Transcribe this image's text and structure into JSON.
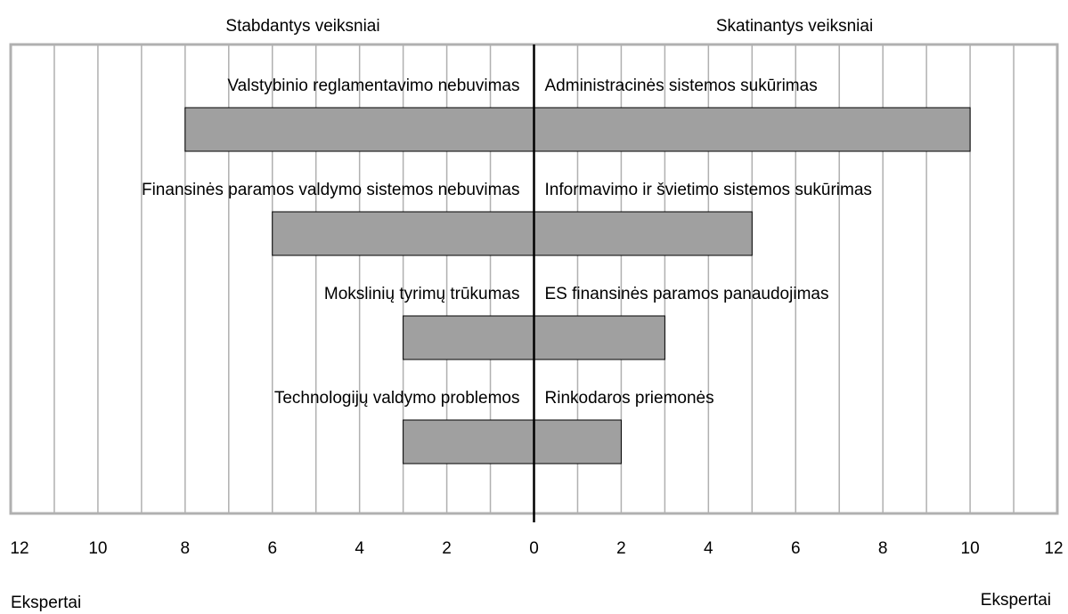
{
  "chart_data": {
    "type": "butterfly",
    "series": [
      {
        "name": "Stabdantys veiksniai",
        "side": "left",
        "color": "#a0a0a0",
        "categories": [
          "Valstybinio reglamentavimo nebuvimas",
          "Finansinės paramos valdymo sistemos nebuvimas",
          "Mokslinių tyrimų trūkumas",
          "Technologijų valdymo problemos"
        ],
        "values": [
          8,
          6,
          3,
          3
        ]
      },
      {
        "name": "Skatinantys veiksniai",
        "side": "right",
        "color": "#a0a0a0",
        "categories": [
          "Administracinės sistemos sukūrimas",
          "Informavimo ir švietimo sistemos sukūrimas",
          "ES finansinės paramos panaudojimas",
          "Rinkodaros priemonės"
        ],
        "values": [
          10,
          5,
          3,
          2
        ]
      }
    ],
    "xlim": [
      -12,
      12
    ],
    "xticks": [
      {
        "value": -12,
        "label": "12"
      },
      {
        "value": -10,
        "label": "10"
      },
      {
        "value": -8,
        "label": "8"
      },
      {
        "value": -6,
        "label": "6"
      },
      {
        "value": -4,
        "label": "4"
      },
      {
        "value": -2,
        "label": "2"
      },
      0,
      2,
      4,
      6,
      8,
      10,
      12
    ],
    "xlabels": [
      "Ekspertai",
      "Ekspertai"
    ],
    "grid": true
  }
}
